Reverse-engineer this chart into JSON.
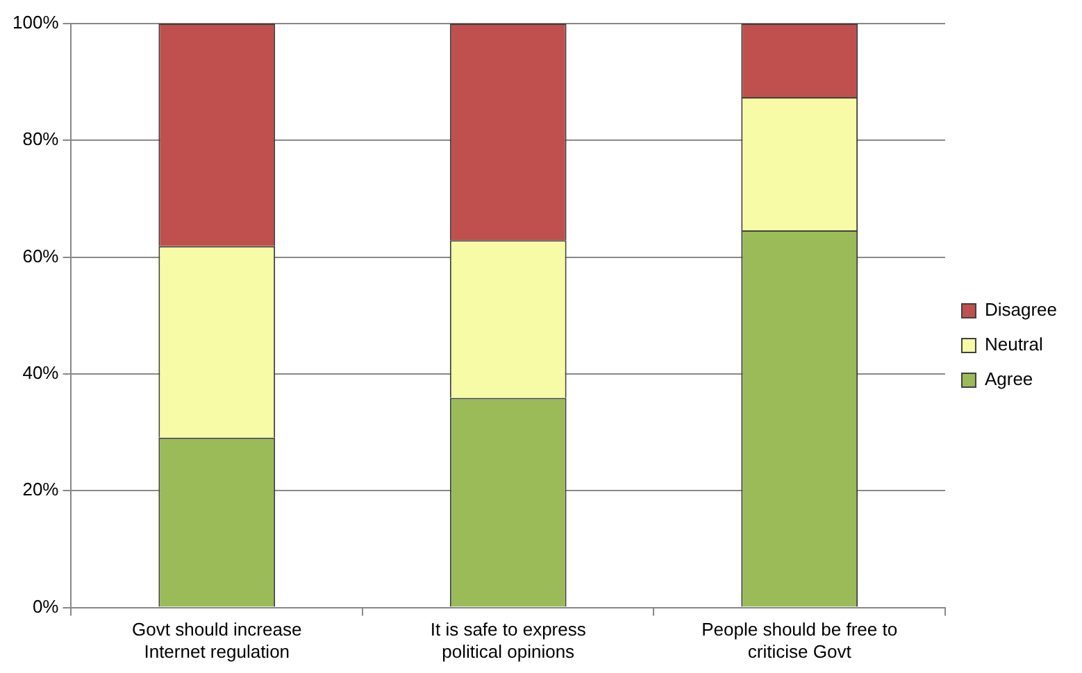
{
  "chart_data": {
    "type": "bar",
    "stacked": true,
    "categories": [
      "Govt should increase Internet regulation",
      "It is safe to express political opinions",
      "People should be free to criticise Govt"
    ],
    "series": [
      {
        "name": "Agree",
        "color": "#9bbb59",
        "values": [
          29.1,
          35.9,
          64.6
        ]
      },
      {
        "name": "Neutral",
        "color": "#f7fba5",
        "values": [
          32.8,
          27.0,
          22.8
        ]
      },
      {
        "name": "Disagree",
        "color": "#c0504d",
        "values": [
          38.1,
          37.1,
          12.6
        ]
      }
    ],
    "ylim": [
      0,
      100
    ],
    "yticks": [
      {
        "value": 0,
        "label": "0%"
      },
      {
        "value": 20,
        "label": "20%"
      },
      {
        "value": 40,
        "label": "40%"
      },
      {
        "value": 60,
        "label": "60%"
      },
      {
        "value": 80,
        "label": "80%"
      },
      {
        "value": 100,
        "label": "100%"
      }
    ],
    "grid": "y",
    "legend": "right"
  }
}
